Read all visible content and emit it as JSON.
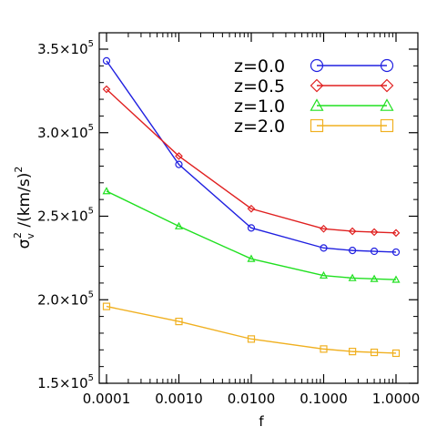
{
  "chart_data": {
    "type": "line",
    "x": [
      0.0001,
      0.001,
      0.01,
      0.1,
      0.25,
      0.5,
      1.0
    ],
    "x_ticks": [
      "0.0001",
      "0.0010",
      "0.0100",
      "0.1000",
      "1.0000"
    ],
    "x_scale": "log",
    "xlim": [
      0.0001,
      1.0
    ],
    "ylim": [
      150000,
      350000
    ],
    "y_ticks": [
      {
        "base": "1.5×10",
        "exp": "5",
        "value": 150000
      },
      {
        "base": "2.0×10",
        "exp": "5",
        "value": 200000
      },
      {
        "base": "2.5×10",
        "exp": "5",
        "value": 250000
      },
      {
        "base": "3.0×10",
        "exp": "5",
        "value": 300000
      },
      {
        "base": "3.5×10",
        "exp": "5",
        "value": 350000
      }
    ],
    "xlabel": "f",
    "ylabel": "σ_v² /(km/s)²",
    "ylabel_parts": {
      "sigma": "σ",
      "sub": "v",
      "sup": "2",
      "rest": " /(km/s)",
      "rest_sup": "2"
    },
    "grid": false,
    "legend_position": "top-right",
    "series": [
      {
        "name": "z=0.0",
        "color": "#2020e0",
        "marker": "circle",
        "values": [
          343000,
          281000,
          243000,
          231000,
          229500,
          229000,
          228500
        ]
      },
      {
        "name": "z=0.5",
        "color": "#e02020",
        "marker": "diamond",
        "values": [
          326000,
          286000,
          254500,
          242500,
          241000,
          240500,
          240000
        ]
      },
      {
        "name": "z=1.0",
        "color": "#20e020",
        "marker": "triangle",
        "values": [
          265000,
          244000,
          224500,
          214500,
          213000,
          212500,
          212000
        ]
      },
      {
        "name": "z=2.0",
        "color": "#f0b020",
        "marker": "square",
        "values": [
          196000,
          187000,
          176500,
          170500,
          169000,
          168500,
          168000
        ]
      }
    ]
  }
}
